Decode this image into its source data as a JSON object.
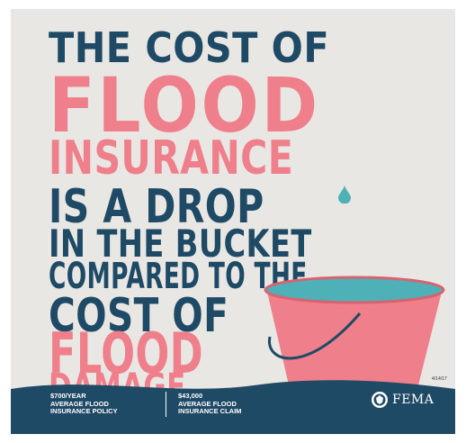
{
  "headline": {
    "line1": "THE COST OF",
    "line2": "FLOOD",
    "line3": "INSURANCE",
    "line4": "IS A DROP",
    "line5": "IN THE BUCKET",
    "line6": "COMPARED TO THE",
    "line7": "COST OF",
    "line8": "FLOOD",
    "line9": "DAMAGE"
  },
  "colors": {
    "navy": "#1f4a66",
    "pink": "#ef7f8a",
    "water": "#4db1b7",
    "background": "#e9e7e4"
  },
  "footer": {
    "policy_amount": "$700/YEAR",
    "policy_line1": "AVERAGE FLOOD",
    "policy_line2": "INSURANCE POLICY",
    "claim_amount": "$43,000",
    "claim_line1": "AVERAGE FLOOD",
    "claim_line2": "INSURANCE CLAIM",
    "logo_text": "FEMA"
  },
  "date": "4/14/17",
  "icons": [
    "water-drop-icon",
    "bucket-icon",
    "dhs-seal-icon"
  ]
}
